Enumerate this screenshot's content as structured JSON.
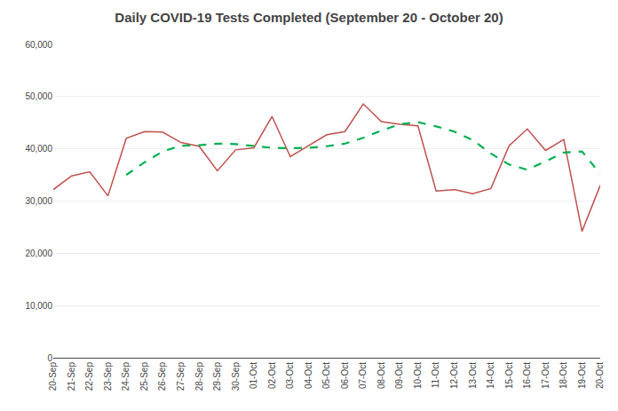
{
  "chart_data": {
    "type": "line",
    "title": "Daily COVID-19 Tests Completed (September 20 - October 20)",
    "categories": [
      "20-Sep",
      "21-Sep",
      "22-Sep",
      "23-Sep",
      "24-Sep",
      "25-Sep",
      "26-Sep",
      "27-Sep",
      "28-Sep",
      "29-Sep",
      "30-Sep",
      "01-Oct",
      "02-Oct",
      "03-Oct",
      "04-Oct",
      "05-Oct",
      "06-Oct",
      "07-Oct",
      "08-Oct",
      "09-Oct",
      "10-Oct",
      "11-Oct",
      "12-Oct",
      "13-Oct",
      "14-Oct",
      "15-Oct",
      "16-Oct",
      "17-Oct",
      "18-Oct",
      "19-Oct",
      "20-Oct"
    ],
    "series": [
      {
        "color": "#C0504D",
        "line_style": "solid",
        "values": [
          32200,
          34800,
          35600,
          31000,
          42000,
          43300,
          43200,
          41200,
          40500,
          35800,
          39800,
          40200,
          46200,
          38500,
          40600,
          42700,
          43300,
          48600,
          45200,
          44700,
          44400,
          31900,
          32200,
          31400,
          32400,
          40600,
          43800,
          39700,
          41800,
          24200,
          33000
        ]
      },
      {
        "color": "#00B050",
        "line_style": "dashed",
        "values": [
          null,
          null,
          null,
          null,
          35000,
          37400,
          39500,
          40600,
          40700,
          41000,
          40900,
          40600,
          40200,
          40100,
          40200,
          40500,
          41000,
          42100,
          43500,
          44700,
          45100,
          44300,
          43300,
          41700,
          39100,
          37000,
          36000,
          37600,
          39300,
          39500,
          35200
        ]
      }
    ],
    "ylim": [
      0,
      60000
    ],
    "yticks": [
      0,
      {
        "value": 10000,
        "label": "10,000"
      },
      {
        "value": 20000,
        "label": "20,000"
      },
      {
        "value": 30000,
        "label": "30,000"
      },
      {
        "value": 40000,
        "label": "40,000"
      },
      {
        "value": 50000,
        "label": "50,000"
      },
      {
        "value": 60000,
        "label": "60,000"
      }
    ],
    "grid": true
  }
}
